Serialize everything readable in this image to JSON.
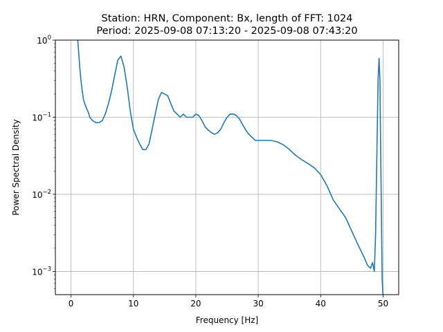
{
  "chart_data": {
    "type": "line",
    "title_line1": "Station: HRN, Component: Bx, length of FFT: 1024",
    "title_line2": "Period: 2025-09-08 07:13:20 - 2025-09-08 07:43:20",
    "xlabel": "Frequency [Hz]",
    "ylabel": "Power Spectral Density",
    "xlim": [
      -2.5,
      52.5
    ],
    "ylim": [
      0.0005,
      1
    ],
    "yscale": "log",
    "grid": true,
    "line_color": "#1f77b4",
    "x_ticks": [
      0,
      10,
      20,
      30,
      40,
      50
    ],
    "x_tick_labels": [
      "0",
      "10",
      "20",
      "30",
      "40",
      "50"
    ],
    "y_ticks": [
      0.001,
      0.01,
      0.1,
      1
    ],
    "y_tick_labels": [
      "10",
      "10",
      "10",
      "10"
    ],
    "y_tick_exponents": [
      "−3",
      "−2",
      "−1",
      "0"
    ],
    "series": [
      {
        "x": [
          1.0,
          1.2,
          1.4,
          1.6,
          1.8,
          2.0,
          2.2,
          2.5,
          2.8,
          3.0,
          3.5,
          4.0,
          4.5,
          5.0,
          5.5,
          6.0,
          6.5,
          7.0,
          7.5,
          8.0,
          8.5,
          9.0,
          9.5,
          10.0,
          10.5,
          11.0,
          11.5,
          12.0,
          12.5,
          13.0,
          13.5,
          14.0,
          14.5,
          15.0,
          15.5,
          16.0,
          16.5,
          17.0,
          17.5,
          18.0,
          18.5,
          19.0,
          19.5,
          20.0,
          20.5,
          21.0,
          21.5,
          22.0,
          22.5,
          23.0,
          23.5,
          24.0,
          24.5,
          25.0,
          25.5,
          26.0,
          26.5,
          27.0,
          27.5,
          28.0,
          28.5,
          29.0,
          29.5,
          30.0,
          31.0,
          32.0,
          33.0,
          34.0,
          35.0,
          36.0,
          37.0,
          38.0,
          39.0,
          40.0,
          41.0,
          42.0,
          43.0,
          44.0,
          45.0,
          46.0,
          47.0,
          47.5,
          48.0,
          48.3,
          48.6,
          48.8,
          49.0,
          49.2,
          49.35,
          49.5,
          49.7,
          49.85,
          50.0
        ],
        "y": [
          1.2,
          0.75,
          0.45,
          0.3,
          0.22,
          0.17,
          0.15,
          0.13,
          0.115,
          0.1,
          0.09,
          0.085,
          0.085,
          0.09,
          0.11,
          0.15,
          0.22,
          0.35,
          0.55,
          0.62,
          0.45,
          0.25,
          0.12,
          0.07,
          0.055,
          0.045,
          0.038,
          0.038,
          0.045,
          0.07,
          0.11,
          0.17,
          0.21,
          0.2,
          0.19,
          0.15,
          0.12,
          0.11,
          0.1,
          0.11,
          0.1,
          0.1,
          0.1,
          0.11,
          0.105,
          0.09,
          0.075,
          0.068,
          0.063,
          0.06,
          0.063,
          0.07,
          0.085,
          0.1,
          0.11,
          0.11,
          0.105,
          0.095,
          0.08,
          0.068,
          0.06,
          0.055,
          0.05,
          0.05,
          0.05,
          0.05,
          0.048,
          0.044,
          0.038,
          0.032,
          0.028,
          0.025,
          0.022,
          0.018,
          0.013,
          0.0085,
          0.0065,
          0.005,
          0.0033,
          0.0022,
          0.0015,
          0.0012,
          0.0011,
          0.0013,
          0.001,
          0.003,
          0.03,
          0.3,
          0.58,
          0.3,
          0.01,
          0.0008,
          0.00045
        ]
      }
    ]
  }
}
